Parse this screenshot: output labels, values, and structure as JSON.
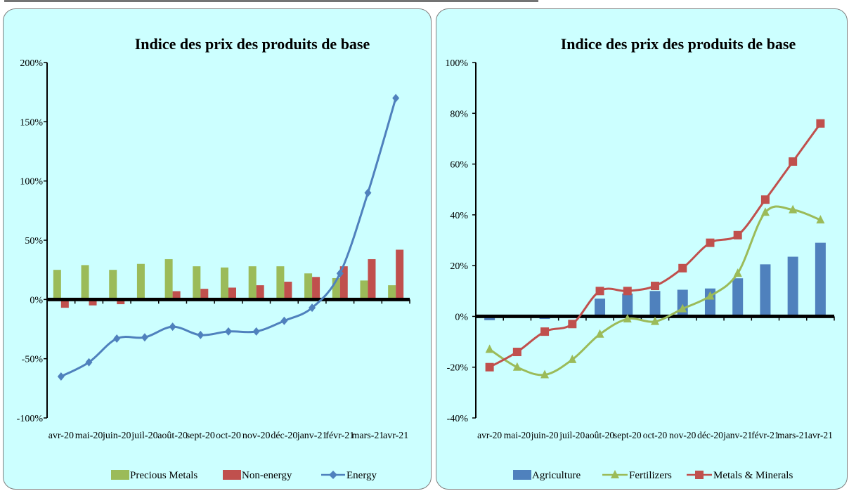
{
  "chart_data": [
    {
      "type": "bar+line",
      "title": "Indice des prix des produits de base",
      "categories": [
        "avr-20",
        "mai-20",
        "juin-20",
        "juil-20",
        "août-20",
        "sept-20",
        "oct-20",
        "nov-20",
        "déc-20",
        "janv-21",
        "févr-21",
        "mars-21",
        "avr-21"
      ],
      "ylim": [
        -100,
        200
      ],
      "yticks": [
        -100,
        -50,
        0,
        50,
        100,
        150,
        200
      ],
      "ytick_labels": [
        "-100%",
        "-50%",
        "0%",
        "50%",
        "100%",
        "150%",
        "200%"
      ],
      "legend_position": "bottom",
      "grid": false,
      "series": [
        {
          "name": "Precious Metals",
          "kind": "bar",
          "color": "#9bbb59",
          "values": [
            25,
            29,
            25,
            30,
            34,
            28,
            27,
            28,
            28,
            22,
            18,
            16,
            12
          ]
        },
        {
          "name": "Non-energy",
          "kind": "bar",
          "color": "#c0504d",
          "values": [
            -7,
            -5,
            -4,
            0,
            7,
            9,
            10,
            12,
            15,
            19,
            28,
            34,
            42
          ]
        },
        {
          "name": "Energy",
          "kind": "line",
          "marker": "diamond",
          "color": "#4f81bd",
          "values": [
            -65,
            -53,
            -33,
            -32,
            -23,
            -30,
            -27,
            -27,
            -18,
            -7,
            22,
            90,
            170
          ]
        }
      ]
    },
    {
      "type": "bar+line",
      "title": "Indice des prix des produits de base",
      "categories": [
        "avr-20",
        "mai-20",
        "juin-20",
        "juil-20",
        "août-20",
        "sept-20",
        "oct-20",
        "nov-20",
        "déc-20",
        "janv-21",
        "févr-21",
        "mars-21",
        "avr-21"
      ],
      "ylim": [
        -40,
        100
      ],
      "yticks": [
        -40,
        -20,
        0,
        20,
        40,
        60,
        80,
        100
      ],
      "ytick_labels": [
        "-40%",
        "-20%",
        "0%",
        "20%",
        "40%",
        "60%",
        "80%",
        "100%"
      ],
      "legend_position": "bottom",
      "grid": false,
      "series": [
        {
          "name": "Agriculture",
          "kind": "bar",
          "color": "#4f81bd",
          "values": [
            -1.5,
            0,
            -1,
            0,
            7,
            9,
            10,
            10.5,
            11,
            15,
            20.5,
            23.5,
            29
          ]
        },
        {
          "name": "Fertilizers",
          "kind": "line",
          "marker": "triangle",
          "color": "#9bbb59",
          "values": [
            -13,
            -20,
            -23,
            -17,
            -7,
            -1,
            -2,
            3,
            8,
            17,
            41,
            42,
            38
          ]
        },
        {
          "name": "Metals & Minerals",
          "kind": "line",
          "marker": "square",
          "color": "#c0504d",
          "values": [
            -20,
            -14,
            -6,
            -3,
            10,
            10,
            12,
            19,
            29,
            32,
            46,
            61,
            76
          ]
        }
      ]
    }
  ]
}
